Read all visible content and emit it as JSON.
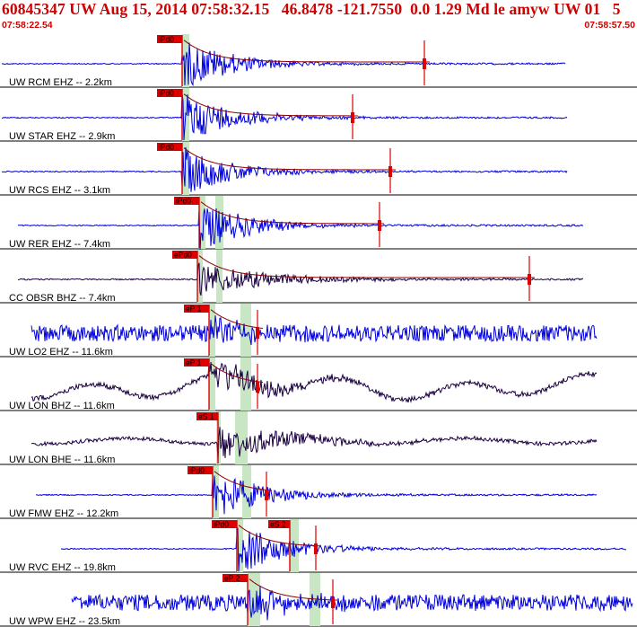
{
  "header": {
    "title": "60845347 UW Aug 15, 2014 07:58:32.15   46.8478 -121.7550  0.0 1.29 Md le amyw UW 01   5",
    "time_start": "07:58:22.54",
    "time_end": "07:58:57.50"
  },
  "colors": {
    "header_text": "#d00000",
    "trace_blue": "#0000dd",
    "trace_dark": "#1a0040",
    "pick": "#dd0000",
    "coda_fit": "#8b0000",
    "window_shade": "#c8e6c4"
  },
  "traces": [
    {
      "label": "UW RCM EHZ -- 2.2km",
      "pick": "iPd0",
      "style": "blue",
      "color": "blue",
      "s_pick": ""
    },
    {
      "label": "UW STAR EHZ -- 2.9km",
      "pick": "iPd0",
      "style": "blue",
      "color": "blue",
      "s_pick": ""
    },
    {
      "label": "UW RCS EHZ -- 3.1km",
      "pick": "iPd0",
      "style": "blue",
      "color": "blue",
      "s_pick": ""
    },
    {
      "label": "UW RER EHZ -- 7.4km",
      "pick": "iPd0",
      "style": "blue",
      "color": "blue",
      "s_pick": ""
    },
    {
      "label": "CC OBSR BHZ -- 7.4km",
      "pick": "ePd0",
      "style": "dark",
      "color": "dark",
      "s_pick": ""
    },
    {
      "label": "UW LO2 EHZ -- 11.6km",
      "pick": "eP 1",
      "style": "noisy",
      "color": "blue",
      "s_pick": ""
    },
    {
      "label": "UW LON BHZ -- 11.6km",
      "pick": "eP 1",
      "style": "lowfreq",
      "color": "dark",
      "s_pick": ""
    },
    {
      "label": "UW LON BHE -- 11.6km",
      "pick": "",
      "style": "lowfreq2",
      "color": "dark",
      "s_pick": "eS 1"
    },
    {
      "label": "UW FMW EHZ -- 12.2km",
      "pick": "iPd0",
      "style": "blue",
      "color": "blue",
      "s_pick": ""
    },
    {
      "label": "UW RVC EHZ -- 19.8km",
      "pick": "iPd0",
      "style": "blue",
      "color": "blue",
      "s_pick": "eS 2"
    },
    {
      "label": "UW WPW EHZ -- 23.5km",
      "pick": "eP 2",
      "style": "noisy",
      "color": "blue",
      "s_pick": ""
    }
  ]
}
